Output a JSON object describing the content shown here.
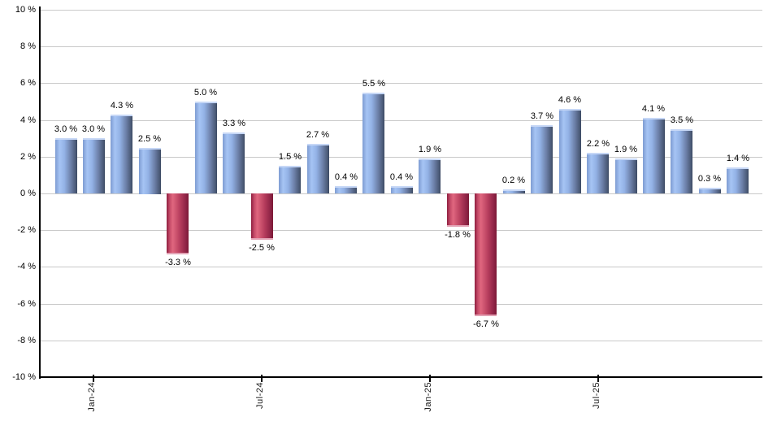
{
  "chart_data": {
    "type": "bar",
    "title": "",
    "xlabel": "",
    "ylabel": "",
    "ylim": [
      -10,
      10
    ],
    "y_step": 2,
    "grid": true,
    "legend": "none",
    "y_tick_labels": [
      "10 %",
      "8 %",
      "6 %",
      "4 %",
      "2 %",
      "0 %",
      "-2 %",
      "-4 %",
      "-6 %",
      "-8 %",
      "-10 %"
    ],
    "values": [
      3.0,
      3.0,
      4.3,
      2.5,
      -3.3,
      5.0,
      3.3,
      -2.5,
      1.5,
      2.7,
      0.4,
      5.5,
      0.4,
      1.9,
      -1.8,
      -6.7,
      0.2,
      3.7,
      4.6,
      2.2,
      1.9,
      4.1,
      3.5,
      0.3,
      1.4
    ],
    "value_labels": [
      "3.0 %",
      "3.0 %",
      "4.3 %",
      "2.5 %",
      "-3.3 %",
      "5.0 %",
      "3.3 %",
      "-2.5 %",
      "1.5 %",
      "2.7 %",
      "0.4 %",
      "5.5 %",
      "0.4 %",
      "1.9 %",
      "-1.8 %",
      "-6.7 %",
      "0.2 %",
      "3.7 %",
      "4.6 %",
      "2.2 %",
      "1.9 %",
      "4.1 %",
      "3.5 %",
      "0.3 %",
      "1.4 %"
    ],
    "x_ticks": [
      {
        "bar_index": 1,
        "label": "Jan-24"
      },
      {
        "bar_index": 7,
        "label": "Jul-24"
      },
      {
        "bar_index": 13,
        "label": "Jan-25"
      },
      {
        "bar_index": 19,
        "label": "Jul-25"
      }
    ],
    "colors": {
      "positive_bar": "#8fafe2",
      "positive_bar_edge": "#3a4860",
      "positive_bar_highlight": "#a6c4f4",
      "negative_bar": "#b53c5c",
      "negative_bar_edge": "#7c1936",
      "negative_bar_highlight": "#e0677f",
      "gridline": "#c9c9c9",
      "axis": "#000000",
      "label_text": "#000000",
      "background": "#ffffff"
    }
  }
}
